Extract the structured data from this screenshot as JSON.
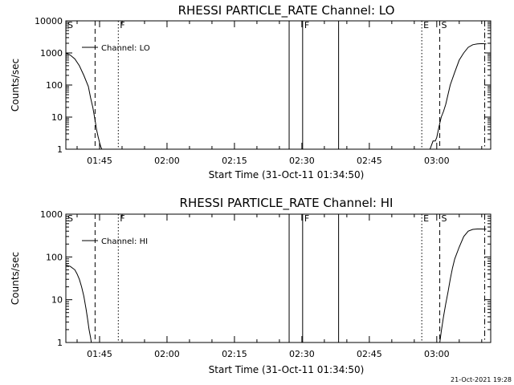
{
  "chart_data": [
    {
      "type": "line",
      "title": "RHESSI PARTICLE_RATE Channel: LO",
      "xlabel": "Start Time (31-Oct-11 01:34:50)",
      "ylabel": "Counts/sec",
      "yscale": "log",
      "ylim": [
        1,
        10000
      ],
      "xlim": [
        "01:37:30",
        "03:12:00"
      ],
      "x_ticks": [
        "01:45",
        "02:00",
        "02:15",
        "02:30",
        "02:45",
        "03:00"
      ],
      "y_ticks": [
        "1",
        "10",
        "100",
        "1000",
        "10000"
      ],
      "legend": "top-left",
      "series": [
        {
          "name": "Channel: LO",
          "x": [
            "01:37:30",
            "01:38:30",
            "01:39:30",
            "01:40:30",
            "01:41:30",
            "01:42:30",
            "01:43:00",
            "01:43:30",
            "01:44:00",
            "01:44:20",
            "01:44:40",
            "01:45:00",
            "01:45:15",
            "01:45:30",
            "01:46:00",
            "01:46:15",
            "02:58:30",
            "02:59:10",
            "02:59:40",
            "03:00:00",
            "03:00:30",
            "03:01:00",
            "03:01:30",
            "03:02:00",
            "03:02:30",
            "03:03:00",
            "03:04:00",
            "03:05:00",
            "03:06:00",
            "03:07:00",
            "03:08:00",
            "03:09:00",
            "03:10:00",
            "03:11:00"
          ],
          "y": [
            1000,
            850,
            650,
            400,
            200,
            90,
            40,
            20,
            8,
            4,
            2.5,
            1.6,
            1.2,
            1.0,
            1.0,
            1.0,
            1.0,
            1.8,
            1.8,
            2.3,
            5,
            10,
            15,
            25,
            50,
            100,
            250,
            600,
            1000,
            1500,
            1800,
            1900,
            1950,
            1900
          ]
        }
      ],
      "markers": [
        {
          "label": "S",
          "x": "01:37:30",
          "style": "none"
        },
        {
          "label": "",
          "x": "01:44:00",
          "style": "dashed"
        },
        {
          "label": "F",
          "x": "01:49:10",
          "style": "dotted"
        },
        {
          "label": "",
          "x": "02:27:10",
          "style": "solid"
        },
        {
          "label": "F",
          "x": "02:30:10",
          "style": "solid"
        },
        {
          "label": "",
          "x": "02:38:10",
          "style": "solid"
        },
        {
          "label": "E",
          "x": "02:56:40",
          "style": "dotted"
        },
        {
          "label": "S",
          "x": "03:00:40",
          "style": "dashed"
        },
        {
          "label": "",
          "x": "03:10:40",
          "style": "dashdot"
        }
      ]
    },
    {
      "type": "line",
      "title": "RHESSI PARTICLE_RATE Channel: HI",
      "xlabel": "Start Time (31-Oct-11 01:34:50)",
      "ylabel": "Counts/sec",
      "yscale": "log",
      "ylim": [
        1,
        1000
      ],
      "xlim": [
        "01:37:30",
        "03:12:00"
      ],
      "x_ticks": [
        "01:45",
        "02:00",
        "02:15",
        "02:30",
        "02:45",
        "03:00"
      ],
      "y_ticks": [
        "1",
        "10",
        "100",
        "1000"
      ],
      "legend": "top-left",
      "series": [
        {
          "name": "Channel: HI",
          "x": [
            "01:37:30",
            "01:38:30",
            "01:39:30",
            "01:40:00",
            "01:40:30",
            "01:41:00",
            "01:41:30",
            "01:42:00",
            "01:42:20",
            "01:42:40",
            "01:43:00",
            "01:43:10",
            "01:43:20",
            "03:00:40",
            "03:01:00",
            "03:01:30",
            "03:02:00",
            "03:02:30",
            "03:03:00",
            "03:03:30",
            "03:04:00",
            "03:05:00",
            "03:06:00",
            "03:07:00",
            "03:08:00",
            "03:09:00",
            "03:10:00",
            "03:11:00"
          ],
          "y": [
            65,
            60,
            50,
            40,
            30,
            20,
            12,
            6,
            3.5,
            2,
            1.3,
            1.0,
            1.0,
            1.0,
            1.8,
            4,
            8,
            15,
            30,
            55,
            90,
            170,
            300,
            400,
            440,
            450,
            450,
            445
          ]
        }
      ],
      "markers": [
        {
          "label": "S",
          "x": "01:37:30",
          "style": "none"
        },
        {
          "label": "",
          "x": "01:44:00",
          "style": "dashed"
        },
        {
          "label": "F",
          "x": "01:49:10",
          "style": "dotted"
        },
        {
          "label": "",
          "x": "02:27:10",
          "style": "solid"
        },
        {
          "label": "F",
          "x": "02:30:10",
          "style": "solid"
        },
        {
          "label": "",
          "x": "02:38:10",
          "style": "solid"
        },
        {
          "label": "E",
          "x": "02:56:40",
          "style": "dotted"
        },
        {
          "label": "S",
          "x": "03:00:40",
          "style": "dashed"
        },
        {
          "label": "",
          "x": "03:10:40",
          "style": "dashdot"
        }
      ]
    }
  ],
  "footer": {
    "stamp": "21-Oct-2021 19:28"
  },
  "colors": {
    "background": "#ffffff",
    "foreground": "#000000"
  }
}
